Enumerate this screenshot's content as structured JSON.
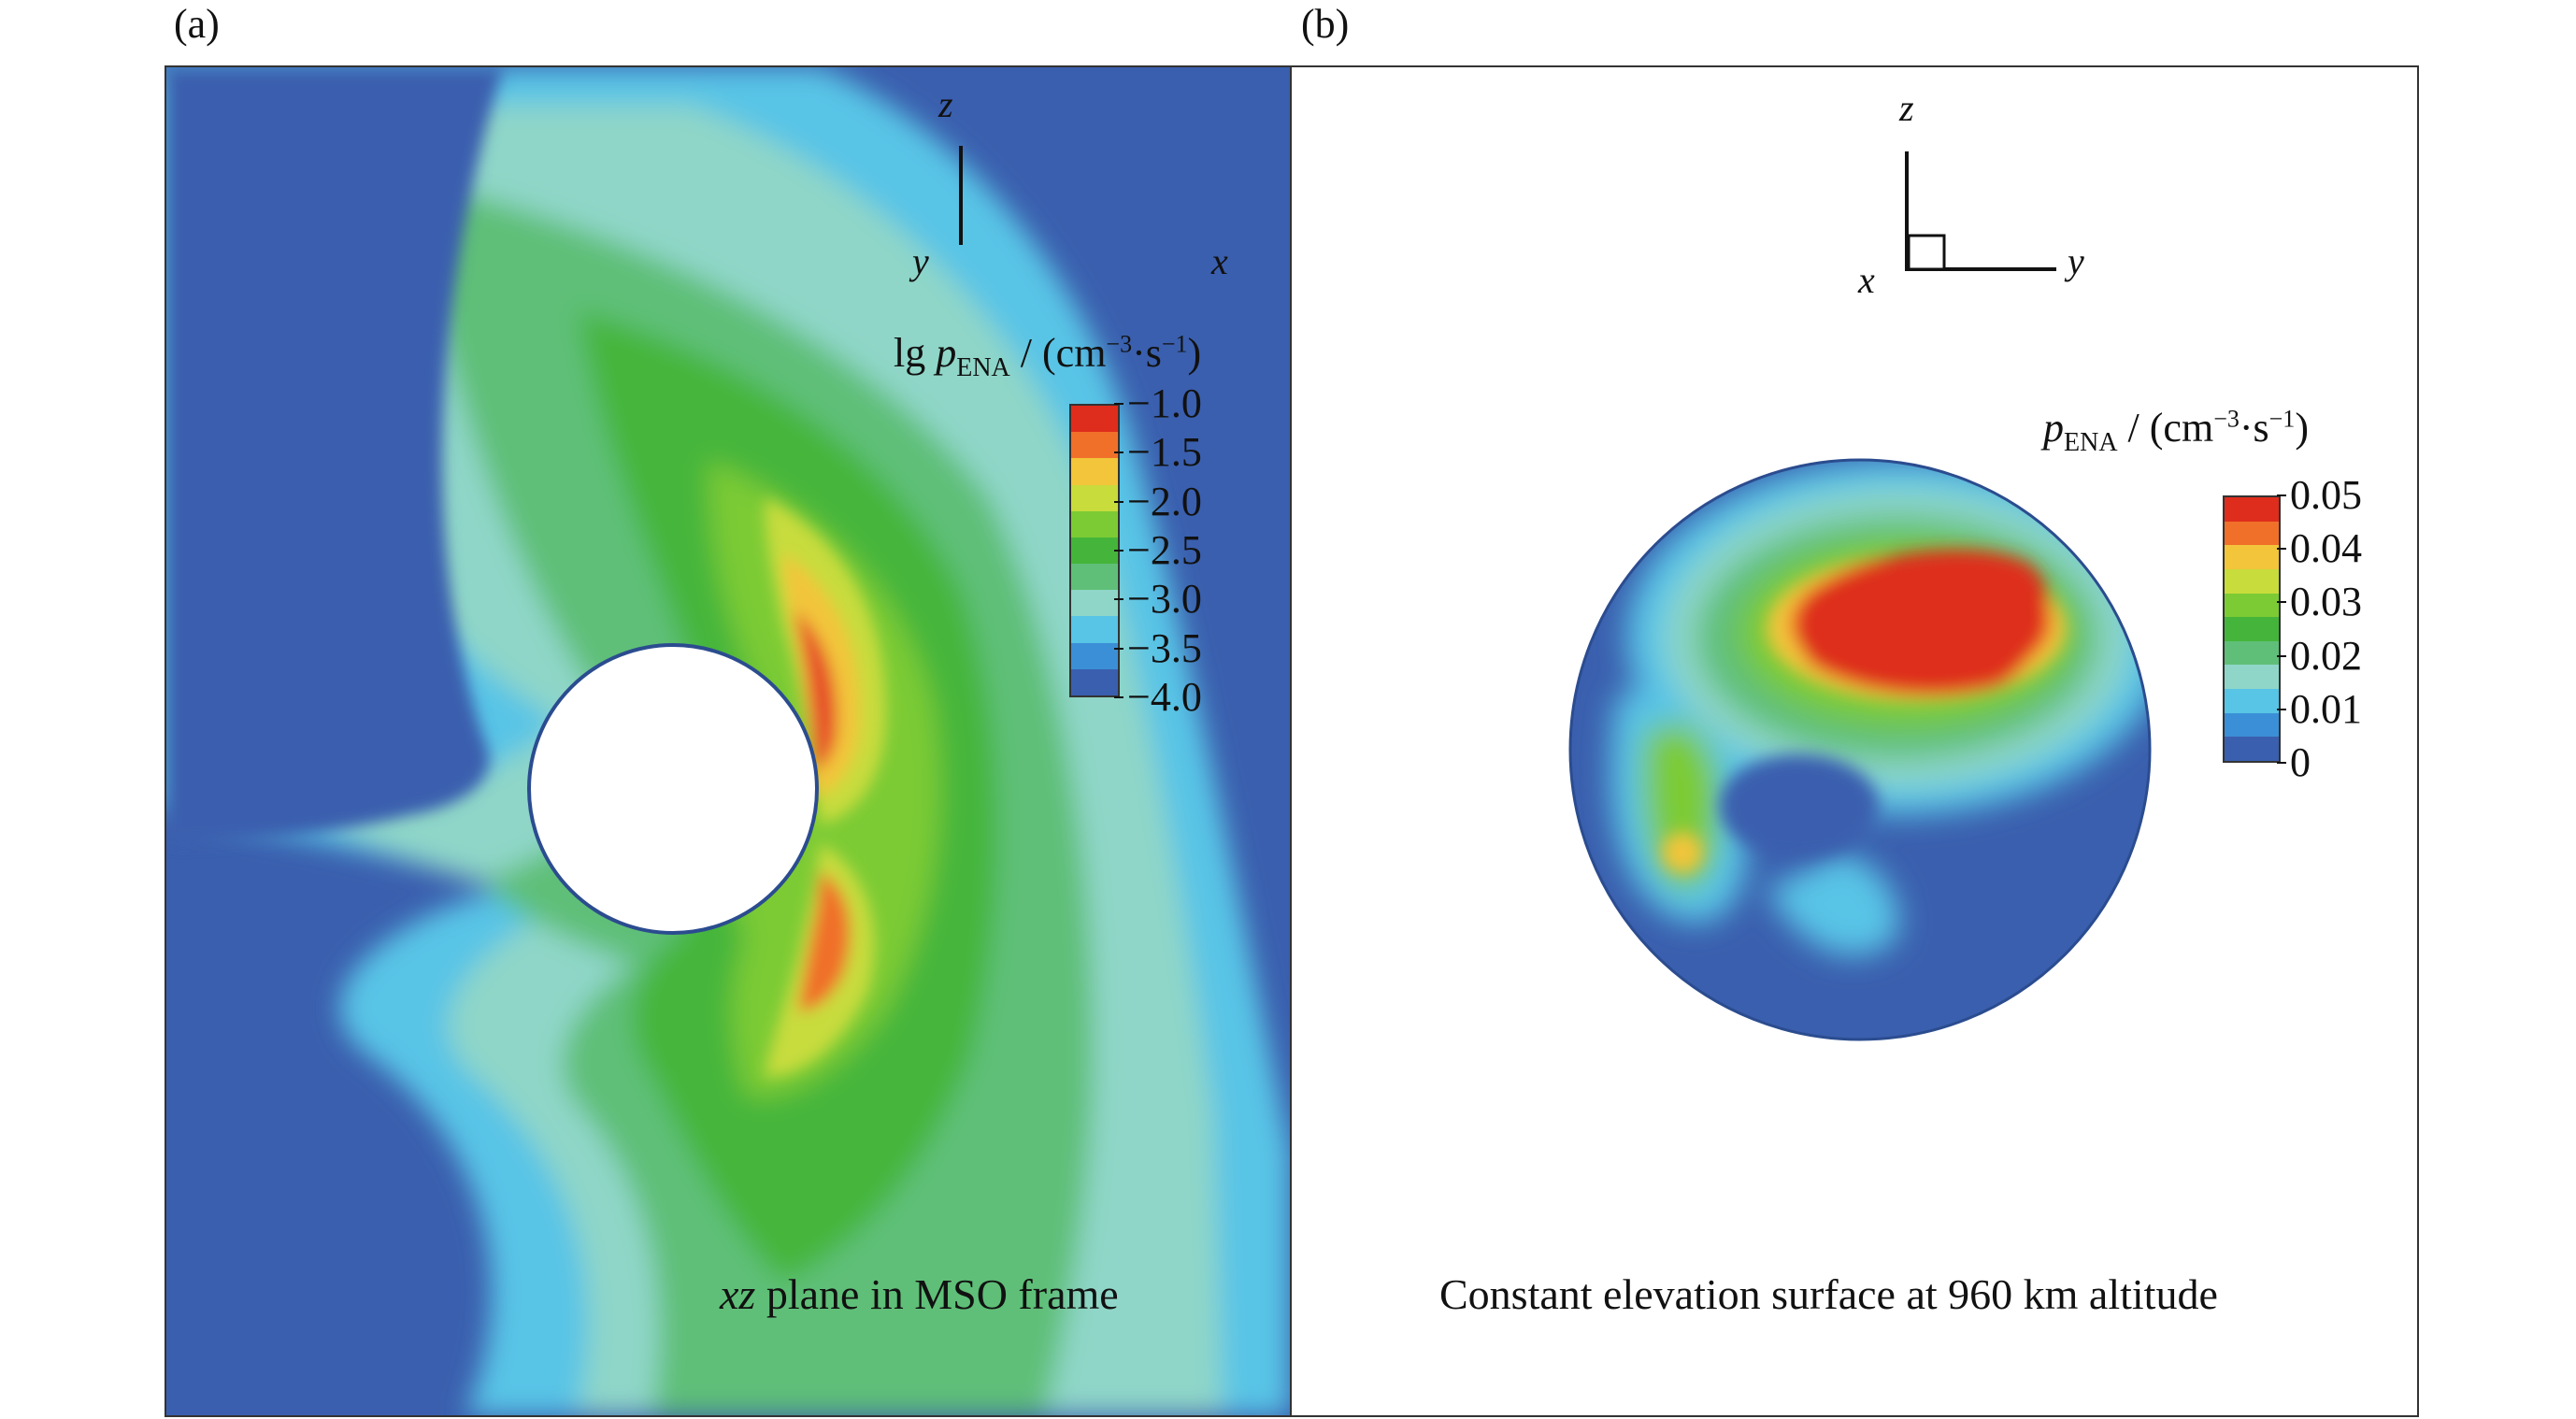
{
  "figure": {
    "panel_a": {
      "letter": "(a)",
      "axes": {
        "vertical": "z",
        "horizontal": "x",
        "out_of_plane": "y"
      },
      "colorbar": {
        "title_prefix": "lg ",
        "title_symbol": "p",
        "title_subscript": "ENA",
        "title_unit_open": " / (cm",
        "title_exp1": "−3",
        "title_mid": "·s",
        "title_exp2": "−1",
        "title_close": ")",
        "ticks": [
          "−1.0",
          "−1.5",
          "−2.0",
          "−2.5",
          "−3.0",
          "−3.5",
          "−4.0"
        ],
        "colors": [
          "#de2d1c",
          "#f0702a",
          "#f2c53a",
          "#c8dc3c",
          "#7ccb34",
          "#44b53a",
          "#5fbf78",
          "#8fd6c8",
          "#58c4e6",
          "#3b8fd6",
          "#3a5fae"
        ]
      },
      "caption_italic": "xz",
      "caption_rest": " plane in MSO frame"
    },
    "panel_b": {
      "letter": "(b)",
      "axes": {
        "vertical": "z",
        "horizontal": "y",
        "out_of_plane": "x"
      },
      "colorbar": {
        "title_symbol": "p",
        "title_subscript": "ENA",
        "title_unit_open": " /  (cm",
        "title_exp1": "−3",
        "title_mid": "·s",
        "title_exp2": "−1",
        "title_close": ")",
        "ticks": [
          "0.05",
          "0.04",
          "0.03",
          "0.02",
          "0.01",
          "0"
        ],
        "colors": [
          "#de2d1c",
          "#f0702a",
          "#f2c53a",
          "#c8dc3c",
          "#7ccb34",
          "#44b53a",
          "#5fbf78",
          "#8fd6c8",
          "#58c4e6",
          "#3b8fd6",
          "#3a5fae"
        ]
      },
      "caption": "Constant elevation surface at 960 km altitude"
    }
  }
}
